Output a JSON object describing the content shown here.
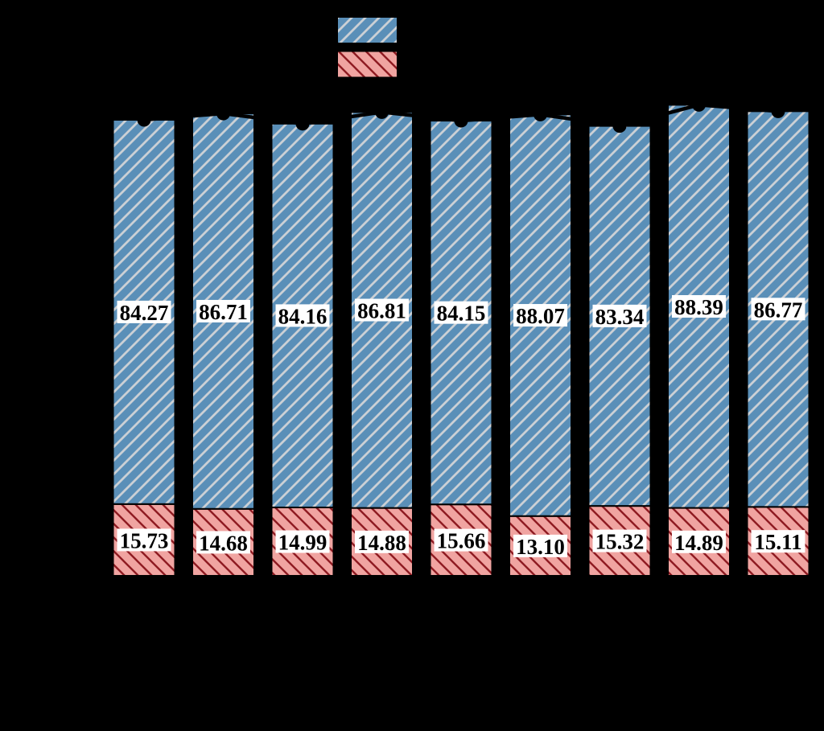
{
  "chart_data": {
    "type": "bar",
    "stacked": true,
    "orientation": "vertical",
    "background_color": "#000000",
    "bar_count": 9,
    "categories": [
      "",
      "",
      "",
      "",
      "",
      "",
      "",
      "",
      ""
    ],
    "series": [
      {
        "name": "top-segment-blue-hatched",
        "fill_color": "#5A8FB8",
        "hatch": "/",
        "hatch_color": "#CBD0D5",
        "edge_color": "#000000",
        "values": [
          84.27,
          86.71,
          84.16,
          86.81,
          84.15,
          88.07,
          83.34,
          88.39,
          86.77
        ],
        "labels": [
          "84.27",
          "86.71",
          "84.16",
          "86.81",
          "84.15",
          "88.07",
          "83.34",
          "88.39",
          "86.77"
        ]
      },
      {
        "name": "bottom-segment-red-hatched",
        "fill_color": "#F0A4A1",
        "hatch": "\\",
        "hatch_color": "#8F1B22",
        "edge_color": "#000000",
        "values": [
          15.73,
          14.68,
          14.99,
          14.88,
          15.66,
          13.1,
          15.32,
          14.89,
          15.11
        ],
        "labels": [
          "15.73",
          "14.68",
          "14.99",
          "14.88",
          "15.66",
          "13.10",
          "15.32",
          "14.89",
          "15.11"
        ]
      }
    ],
    "overlay_line": {
      "description": "black line with circular markers tracing bar totals; visible only where it overlaps the blue bars (notches and slanted cuts at bar tops)",
      "color": "#000000",
      "marker": "circle",
      "values": [
        100.0,
        101.39,
        99.15,
        101.69,
        99.81,
        101.17,
        98.66,
        103.28,
        101.88
      ]
    },
    "value_labels": {
      "background": "#FFFFFF",
      "text_color": "#000000"
    },
    "legend": {
      "position": "top-center",
      "entries": [
        {
          "label": "",
          "swatch_fill": "#5A8FB8",
          "swatch_hatch": "/",
          "swatch_hatch_color": "#CBD0D5"
        },
        {
          "label": "",
          "swatch_fill": "#F0A4A1",
          "swatch_hatch": "\\",
          "swatch_hatch_color": "#8F1B22"
        }
      ]
    }
  }
}
